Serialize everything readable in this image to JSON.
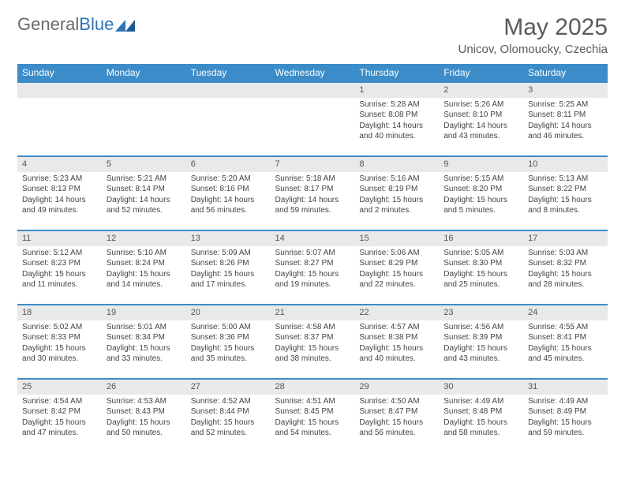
{
  "logo": {
    "general": "General",
    "blue": "Blue"
  },
  "title": "May 2025",
  "location": "Unicov, Olomoucky, Czechia",
  "headers": [
    "Sunday",
    "Monday",
    "Tuesday",
    "Wednesday",
    "Thursday",
    "Friday",
    "Saturday"
  ],
  "colors": {
    "header_bg": "#3c8cc9",
    "header_text": "#ffffff",
    "daynum_bg": "#e9e9e9",
    "row_divider": "#3c8cc9",
    "body_text": "#444444",
    "title_text": "#5a5a5a"
  },
  "typography": {
    "title_fontsize": 30,
    "location_fontsize": 15,
    "header_fontsize": 12,
    "daynum_fontsize": 11,
    "cell_fontsize": 10
  },
  "weeks": [
    [
      {
        "empty": true
      },
      {
        "empty": true
      },
      {
        "empty": true
      },
      {
        "empty": true
      },
      {
        "n": "1",
        "sunrise": "5:28 AM",
        "sunset": "8:08 PM",
        "daylight": "14 hours and 40 minutes."
      },
      {
        "n": "2",
        "sunrise": "5:26 AM",
        "sunset": "8:10 PM",
        "daylight": "14 hours and 43 minutes."
      },
      {
        "n": "3",
        "sunrise": "5:25 AM",
        "sunset": "8:11 PM",
        "daylight": "14 hours and 46 minutes."
      }
    ],
    [
      {
        "n": "4",
        "sunrise": "5:23 AM",
        "sunset": "8:13 PM",
        "daylight": "14 hours and 49 minutes."
      },
      {
        "n": "5",
        "sunrise": "5:21 AM",
        "sunset": "8:14 PM",
        "daylight": "14 hours and 52 minutes."
      },
      {
        "n": "6",
        "sunrise": "5:20 AM",
        "sunset": "8:16 PM",
        "daylight": "14 hours and 56 minutes."
      },
      {
        "n": "7",
        "sunrise": "5:18 AM",
        "sunset": "8:17 PM",
        "daylight": "14 hours and 59 minutes."
      },
      {
        "n": "8",
        "sunrise": "5:16 AM",
        "sunset": "8:19 PM",
        "daylight": "15 hours and 2 minutes."
      },
      {
        "n": "9",
        "sunrise": "5:15 AM",
        "sunset": "8:20 PM",
        "daylight": "15 hours and 5 minutes."
      },
      {
        "n": "10",
        "sunrise": "5:13 AM",
        "sunset": "8:22 PM",
        "daylight": "15 hours and 8 minutes."
      }
    ],
    [
      {
        "n": "11",
        "sunrise": "5:12 AM",
        "sunset": "8:23 PM",
        "daylight": "15 hours and 11 minutes."
      },
      {
        "n": "12",
        "sunrise": "5:10 AM",
        "sunset": "8:24 PM",
        "daylight": "15 hours and 14 minutes."
      },
      {
        "n": "13",
        "sunrise": "5:09 AM",
        "sunset": "8:26 PM",
        "daylight": "15 hours and 17 minutes."
      },
      {
        "n": "14",
        "sunrise": "5:07 AM",
        "sunset": "8:27 PM",
        "daylight": "15 hours and 19 minutes."
      },
      {
        "n": "15",
        "sunrise": "5:06 AM",
        "sunset": "8:29 PM",
        "daylight": "15 hours and 22 minutes."
      },
      {
        "n": "16",
        "sunrise": "5:05 AM",
        "sunset": "8:30 PM",
        "daylight": "15 hours and 25 minutes."
      },
      {
        "n": "17",
        "sunrise": "5:03 AM",
        "sunset": "8:32 PM",
        "daylight": "15 hours and 28 minutes."
      }
    ],
    [
      {
        "n": "18",
        "sunrise": "5:02 AM",
        "sunset": "8:33 PM",
        "daylight": "15 hours and 30 minutes."
      },
      {
        "n": "19",
        "sunrise": "5:01 AM",
        "sunset": "8:34 PM",
        "daylight": "15 hours and 33 minutes."
      },
      {
        "n": "20",
        "sunrise": "5:00 AM",
        "sunset": "8:36 PM",
        "daylight": "15 hours and 35 minutes."
      },
      {
        "n": "21",
        "sunrise": "4:58 AM",
        "sunset": "8:37 PM",
        "daylight": "15 hours and 38 minutes."
      },
      {
        "n": "22",
        "sunrise": "4:57 AM",
        "sunset": "8:38 PM",
        "daylight": "15 hours and 40 minutes."
      },
      {
        "n": "23",
        "sunrise": "4:56 AM",
        "sunset": "8:39 PM",
        "daylight": "15 hours and 43 minutes."
      },
      {
        "n": "24",
        "sunrise": "4:55 AM",
        "sunset": "8:41 PM",
        "daylight": "15 hours and 45 minutes."
      }
    ],
    [
      {
        "n": "25",
        "sunrise": "4:54 AM",
        "sunset": "8:42 PM",
        "daylight": "15 hours and 47 minutes."
      },
      {
        "n": "26",
        "sunrise": "4:53 AM",
        "sunset": "8:43 PM",
        "daylight": "15 hours and 50 minutes."
      },
      {
        "n": "27",
        "sunrise": "4:52 AM",
        "sunset": "8:44 PM",
        "daylight": "15 hours and 52 minutes."
      },
      {
        "n": "28",
        "sunrise": "4:51 AM",
        "sunset": "8:45 PM",
        "daylight": "15 hours and 54 minutes."
      },
      {
        "n": "29",
        "sunrise": "4:50 AM",
        "sunset": "8:47 PM",
        "daylight": "15 hours and 56 minutes."
      },
      {
        "n": "30",
        "sunrise": "4:49 AM",
        "sunset": "8:48 PM",
        "daylight": "15 hours and 58 minutes."
      },
      {
        "n": "31",
        "sunrise": "4:49 AM",
        "sunset": "8:49 PM",
        "daylight": "15 hours and 59 minutes."
      }
    ]
  ],
  "labels": {
    "sunrise": "Sunrise: ",
    "sunset": "Sunset: ",
    "daylight": "Daylight: "
  }
}
